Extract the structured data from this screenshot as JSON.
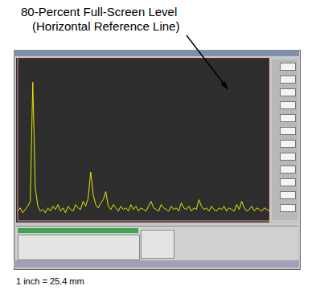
{
  "chart_data": {
    "type": "line",
    "annotations": [
      "80-Percent Full-Screen Level",
      "(Horizontal Reference Line)",
      "1 inch = 25.4 mm"
    ],
    "x": [
      0,
      1,
      2,
      3,
      4,
      5,
      6,
      7,
      8,
      9,
      10,
      11,
      12,
      13,
      14,
      15,
      16,
      17,
      18,
      19,
      20,
      21,
      22,
      23,
      24,
      25,
      26,
      27,
      28,
      29,
      30,
      31,
      32,
      33,
      34,
      35,
      36,
      37,
      38,
      39,
      40,
      41,
      42,
      43,
      44,
      45,
      46,
      47,
      48,
      49,
      50,
      51,
      52,
      53,
      54,
      55,
      56,
      57,
      58,
      59,
      60,
      61,
      62,
      63,
      64,
      65,
      66,
      67,
      68,
      69,
      70,
      71,
      72,
      73,
      74,
      75,
      76,
      77,
      78,
      79,
      80,
      81,
      82,
      83,
      84,
      85,
      86,
      87,
      88,
      89,
      90,
      91,
      92,
      93,
      94,
      95,
      96,
      97,
      98,
      99,
      100
    ],
    "values": [
      6,
      8,
      5,
      7,
      9,
      12,
      85,
      20,
      9,
      6,
      7,
      5,
      8,
      6,
      9,
      7,
      10,
      6,
      8,
      5,
      9,
      7,
      6,
      10,
      8,
      7,
      12,
      9,
      14,
      30,
      16,
      10,
      8,
      11,
      13,
      18,
      9,
      7,
      10,
      8,
      6,
      9,
      7,
      8,
      6,
      10,
      7,
      9,
      6,
      8,
      7,
      6,
      9,
      12,
      8,
      7,
      6,
      10,
      8,
      7,
      6,
      9,
      7,
      8,
      6,
      11,
      8,
      7,
      9,
      6,
      8,
      7,
      13,
      9,
      7,
      8,
      6,
      9,
      7,
      6,
      8,
      7,
      9,
      6,
      8,
      7,
      6,
      10,
      7,
      12,
      8,
      6,
      7,
      9,
      6,
      8,
      7,
      6,
      8,
      7,
      6
    ],
    "color": "#e8e800",
    "xlim": [
      0,
      100
    ],
    "ylim": [
      0,
      100
    ],
    "xticks": [
      0,
      10,
      20,
      30,
      40,
      50,
      60,
      70,
      80,
      90,
      100
    ],
    "yticks": [
      0,
      10,
      20,
      30,
      40,
      50,
      60,
      70,
      80,
      90,
      100
    ],
    "grid": true,
    "tick_labels": false
  }
}
